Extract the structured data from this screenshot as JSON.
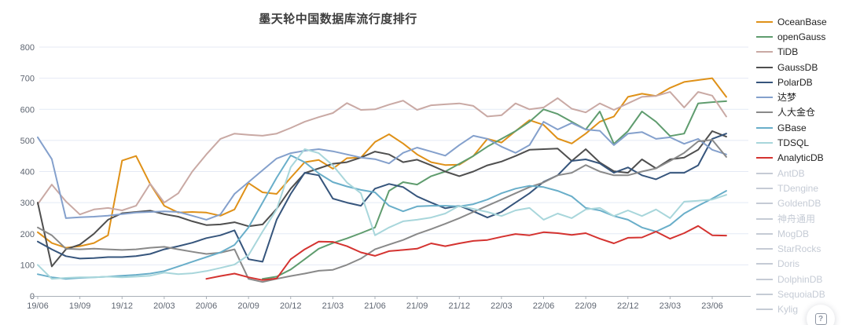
{
  "chart": {
    "help_icon": "?"
  },
  "layout_colors": {
    "grid": "#e4eaf5",
    "axis": "#aab0b8",
    "tick_text": "#5f6672",
    "title_text": "#3d3d3d",
    "legend_active_text": "#222222",
    "legend_disabled": "#c5cbd5"
  },
  "chart_data": {
    "type": "line",
    "title": "墨天轮中国数据库流行度排行",
    "xlabel": "",
    "ylabel": "",
    "ylim": [
      0,
      800
    ],
    "y_ticks": [
      0,
      100,
      200,
      300,
      400,
      500,
      600,
      700,
      800
    ],
    "grid": true,
    "legend_position": "right",
    "x_tick_labels": [
      "19/06",
      "19/09",
      "19/12",
      "20/03",
      "20/06",
      "20/09",
      "20/12",
      "21/03",
      "21/06",
      "21/09",
      "21/12",
      "22/03",
      "22/06",
      "22/09",
      "22/12",
      "23/03",
      "23/06"
    ],
    "months_between_ticks": 3,
    "series": [
      {
        "name": "OceanBase",
        "color": "#df9118",
        "enabled": true,
        "values": [
          205,
          170,
          155,
          160,
          170,
          195,
          435,
          450,
          360,
          290,
          268,
          270,
          268,
          258,
          278,
          363,
          333,
          328,
          380,
          430,
          437,
          409,
          443,
          445,
          495,
          520,
          490,
          455,
          430,
          421,
          422,
          450,
          505,
          493,
          530,
          565,
          550,
          506,
          490,
          522,
          560,
          577,
          640,
          650,
          643,
          669,
          688,
          694,
          700,
          640
        ]
      },
      {
        "name": "openGauss",
        "color": "#5f9c6e",
        "enabled": true,
        "values": [
          null,
          null,
          null,
          null,
          null,
          null,
          null,
          null,
          null,
          null,
          null,
          null,
          null,
          null,
          null,
          null,
          55,
          62,
          85,
          118,
          152,
          170,
          185,
          202,
          220,
          338,
          366,
          358,
          385,
          400,
          425,
          450,
          480,
          505,
          530,
          560,
          600,
          585,
          560,
          535,
          593,
          489,
          530,
          593,
          560,
          514,
          522,
          619,
          623,
          626
        ]
      },
      {
        "name": "TiDB",
        "color": "#c9a9a4",
        "enabled": true,
        "values": [
          295,
          358,
          304,
          262,
          278,
          283,
          275,
          290,
          361,
          300,
          330,
          400,
          455,
          505,
          522,
          518,
          515,
          522,
          540,
          560,
          575,
          588,
          620,
          598,
          600,
          615,
          628,
          598,
          613,
          616,
          619,
          611,
          577,
          581,
          619,
          600,
          606,
          636,
          602,
          590,
          619,
          598,
          619,
          640,
          643,
          656,
          606,
          656,
          644,
          577
        ]
      },
      {
        "name": "GaussDB",
        "color": "#4f4f4f",
        "enabled": true,
        "values": [
          300,
          95,
          150,
          165,
          200,
          245,
          266,
          270,
          274,
          263,
          255,
          240,
          228,
          230,
          237,
          224,
          230,
          280,
          345,
          395,
          410,
          425,
          430,
          445,
          464,
          455,
          430,
          438,
          420,
          400,
          385,
          400,
          420,
          432,
          450,
          470,
          472,
          474,
          434,
          472,
          429,
          401,
          396,
          439,
          410,
          439,
          445,
          470,
          530,
          512
        ]
      },
      {
        "name": "PolarDB",
        "color": "#36557c",
        "enabled": true,
        "values": [
          175,
          150,
          128,
          120,
          122,
          125,
          125,
          128,
          135,
          150,
          160,
          171,
          186,
          195,
          211,
          118,
          110,
          245,
          328,
          396,
          388,
          313,
          300,
          290,
          345,
          360,
          350,
          320,
          300,
          282,
          290,
          272,
          252,
          270,
          300,
          330,
          367,
          388,
          434,
          439,
          426,
          396,
          413,
          388,
          375,
          396,
          396,
          420,
          505,
          522
        ]
      },
      {
        "name": "达梦",
        "color": "#84a0cc",
        "enabled": true,
        "values": [
          510,
          440,
          250,
          253,
          255,
          258,
          263,
          268,
          270,
          272,
          270,
          258,
          245,
          262,
          328,
          366,
          404,
          442,
          459,
          467,
          472,
          465,
          455,
          445,
          440,
          426,
          460,
          477,
          464,
          451,
          485,
          515,
          505,
          480,
          460,
          485,
          560,
          535,
          556,
          535,
          531,
          485,
          522,
          527,
          505,
          510,
          489,
          505,
          470,
          455
        ]
      },
      {
        "name": "人大金仓",
        "color": "#898989",
        "enabled": true,
        "values": [
          220,
          195,
          152,
          150,
          152,
          150,
          148,
          150,
          155,
          158,
          150,
          142,
          135,
          139,
          150,
          55,
          45,
          55,
          64,
          72,
          81,
          84,
          100,
          120,
          150,
          165,
          180,
          199,
          215,
          232,
          250,
          270,
          290,
          310,
          330,
          350,
          365,
          388,
          396,
          421,
          400,
          388,
          388,
          400,
          410,
          434,
          460,
          497,
          502,
          447
        ]
      },
      {
        "name": "GBase",
        "color": "#69aec9",
        "enabled": true,
        "values": [
          70,
          60,
          55,
          58,
          60,
          62,
          65,
          68,
          72,
          80,
          95,
          110,
          125,
          140,
          164,
          220,
          300,
          380,
          452,
          430,
          394,
          366,
          352,
          341,
          333,
          290,
          272,
          288,
          290,
          290,
          288,
          295,
          310,
          330,
          345,
          354,
          350,
          338,
          320,
          283,
          275,
          257,
          245,
          220,
          207,
          228,
          265,
          290,
          313,
          338
        ]
      },
      {
        "name": "TDSQL",
        "color": "#a8d6db",
        "enabled": true,
        "values": [
          100,
          55,
          58,
          60,
          60,
          62,
          60,
          62,
          65,
          75,
          70,
          73,
          80,
          90,
          101,
          131,
          207,
          278,
          414,
          472,
          459,
          420,
          365,
          330,
          195,
          220,
          240,
          245,
          252,
          265,
          290,
          280,
          270,
          257,
          275,
          283,
          245,
          265,
          250,
          278,
          283,
          257,
          275,
          257,
          278,
          250,
          303,
          306,
          310,
          325
        ]
      },
      {
        "name": "AnalyticDB",
        "color": "#d43330",
        "enabled": true,
        "values": [
          null,
          null,
          null,
          null,
          null,
          null,
          null,
          null,
          null,
          null,
          null,
          null,
          55,
          64,
          72,
          60,
          51,
          56,
          118,
          150,
          175,
          174,
          160,
          140,
          129,
          144,
          148,
          152,
          169,
          160,
          169,
          177,
          180,
          190,
          199,
          195,
          205,
          202,
          196,
          202,
          184,
          169,
          187,
          188,
          207,
          184,
          202,
          225,
          195,
          194
        ]
      },
      {
        "name": "AntDB",
        "color": "#c5cbd5",
        "enabled": false,
        "values": null
      },
      {
        "name": "TDengine",
        "color": "#c5cbd5",
        "enabled": false,
        "values": null
      },
      {
        "name": "GoldenDB",
        "color": "#c5cbd5",
        "enabled": false,
        "values": null
      },
      {
        "name": "神舟通用",
        "color": "#c5cbd5",
        "enabled": false,
        "values": null
      },
      {
        "name": "MogDB",
        "color": "#c5cbd5",
        "enabled": false,
        "values": null
      },
      {
        "name": "StarRocks",
        "color": "#c5cbd5",
        "enabled": false,
        "values": null
      },
      {
        "name": "Doris",
        "color": "#c5cbd5",
        "enabled": false,
        "values": null
      },
      {
        "name": "DolphinDB",
        "color": "#c5cbd5",
        "enabled": false,
        "values": null
      },
      {
        "name": "SequoiaDB",
        "color": "#c5cbd5",
        "enabled": false,
        "values": null
      },
      {
        "name": "Kylig",
        "color": "#c5cbd5",
        "enabled": false,
        "values": null
      }
    ]
  }
}
